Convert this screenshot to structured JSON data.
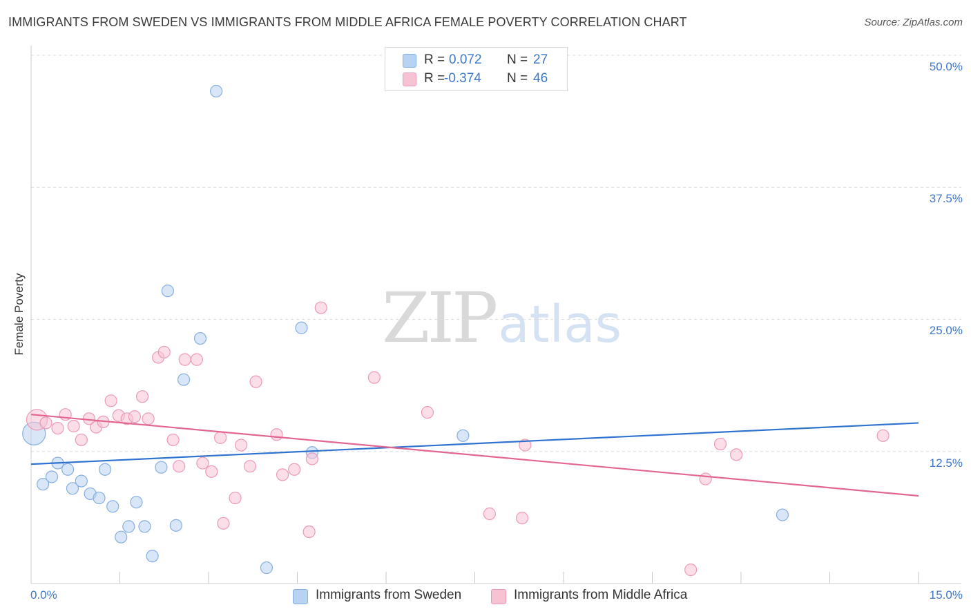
{
  "header": {
    "title": "IMMIGRANTS FROM SWEDEN VS IMMIGRANTS FROM MIDDLE AFRICA FEMALE POVERTY CORRELATION CHART",
    "source": "Source: ZipAtlas.com"
  },
  "watermark": {
    "zip": "ZIP",
    "atlas": "atlas"
  },
  "legend": {
    "r_label": "R =",
    "n_label": "N =",
    "series": [
      {
        "name": "Immigrants from Sweden",
        "r": "0.072",
        "n": "27",
        "fill": "#b8d2f2",
        "stroke": "#86aee0"
      },
      {
        "name": "Immigrants from Middle Africa",
        "r": "-0.374",
        "n": "46",
        "fill": "#f7c3d3",
        "stroke": "#ec9ab5"
      }
    ]
  },
  "colors": {
    "sweden_line": "#2f72cf",
    "africa_line": "#e3668f",
    "tick_label": "#3d78c8",
    "grid": "#dddddd"
  },
  "chart_data": {
    "type": "scatter",
    "title": "IMMIGRANTS FROM SWEDEN VS IMMIGRANTS FROM MIDDLE AFRICA FEMALE POVERTY CORRELATION CHART",
    "xlabel": "",
    "ylabel": "Female Poverty",
    "xlim": [
      0,
      15
    ],
    "ylim": [
      0,
      50
    ],
    "x_tick_labels": [
      "0.0%",
      "15.0%"
    ],
    "y_ticks": [
      12.5,
      25.0,
      37.5,
      50.0
    ],
    "y_tick_labels": [
      "12.5%",
      "25.0%",
      "37.5%",
      "50.0%"
    ],
    "grid": true,
    "series": [
      {
        "name": "Immigrants from Sweden",
        "points": [
          [
            0.05,
            14.2,
            3
          ],
          [
            0.2,
            9.4,
            1
          ],
          [
            0.35,
            10.1,
            1
          ],
          [
            0.45,
            11.4,
            1
          ],
          [
            0.62,
            10.8,
            1
          ],
          [
            0.7,
            9.0,
            1
          ],
          [
            0.85,
            9.7,
            1
          ],
          [
            1.0,
            8.5,
            1
          ],
          [
            1.15,
            8.1,
            1
          ],
          [
            1.25,
            10.8,
            1
          ],
          [
            1.38,
            7.3,
            1
          ],
          [
            1.52,
            4.4,
            1
          ],
          [
            1.65,
            5.4,
            1
          ],
          [
            1.78,
            7.7,
            1
          ],
          [
            1.92,
            5.4,
            1
          ],
          [
            2.05,
            2.6,
            1
          ],
          [
            2.2,
            11.0,
            1
          ],
          [
            2.31,
            27.7,
            1
          ],
          [
            2.45,
            5.5,
            1
          ],
          [
            2.58,
            19.3,
            1
          ],
          [
            2.86,
            23.2,
            1
          ],
          [
            3.13,
            46.6,
            1
          ],
          [
            3.98,
            1.5,
            1
          ],
          [
            4.57,
            24.2,
            1
          ],
          [
            4.75,
            12.4,
            1
          ],
          [
            7.3,
            14.0,
            1
          ],
          [
            12.7,
            6.5,
            1
          ]
        ],
        "trend": {
          "x": [
            0,
            15
          ],
          "y": [
            11.3,
            15.2
          ]
        }
      },
      {
        "name": "Immigrants from Middle Africa",
        "points": [
          [
            0.1,
            15.5,
            2
          ],
          [
            0.25,
            15.2,
            1
          ],
          [
            0.45,
            14.7,
            1
          ],
          [
            0.58,
            16.0,
            1
          ],
          [
            0.72,
            14.9,
            1
          ],
          [
            0.85,
            13.6,
            1
          ],
          [
            0.98,
            15.6,
            1
          ],
          [
            1.1,
            14.8,
            1
          ],
          [
            1.22,
            15.3,
            1
          ],
          [
            1.35,
            17.3,
            1
          ],
          [
            1.48,
            15.9,
            1
          ],
          [
            1.62,
            15.6,
            1
          ],
          [
            1.75,
            15.8,
            1
          ],
          [
            1.88,
            17.7,
            1
          ],
          [
            1.98,
            15.6,
            1
          ],
          [
            2.15,
            21.4,
            1
          ],
          [
            2.25,
            21.9,
            1
          ],
          [
            2.4,
            13.6,
            1
          ],
          [
            2.5,
            11.1,
            1
          ],
          [
            2.6,
            21.2,
            1
          ],
          [
            2.8,
            21.2,
            1
          ],
          [
            2.9,
            11.4,
            1
          ],
          [
            3.05,
            10.6,
            1
          ],
          [
            3.2,
            13.8,
            1
          ],
          [
            3.25,
            5.7,
            1
          ],
          [
            3.45,
            8.1,
            1
          ],
          [
            3.55,
            13.1,
            1
          ],
          [
            3.7,
            11.1,
            1
          ],
          [
            3.8,
            19.1,
            1
          ],
          [
            4.15,
            14.1,
            1
          ],
          [
            4.25,
            10.3,
            1
          ],
          [
            4.45,
            10.8,
            1
          ],
          [
            4.7,
            4.9,
            1
          ],
          [
            4.75,
            11.8,
            1
          ],
          [
            4.9,
            26.1,
            1
          ],
          [
            5.8,
            19.5,
            1
          ],
          [
            6.7,
            16.2,
            1
          ],
          [
            7.75,
            6.6,
            1
          ],
          [
            8.3,
            6.2,
            1
          ],
          [
            8.35,
            13.1,
            1
          ],
          [
            11.15,
            1.3,
            1
          ],
          [
            11.4,
            9.9,
            1
          ],
          [
            11.65,
            13.2,
            1
          ],
          [
            11.92,
            12.2,
            1
          ],
          [
            14.4,
            14.0,
            1
          ]
        ],
        "trend": {
          "x": [
            0,
            15
          ],
          "y": [
            16.0,
            8.3
          ]
        }
      }
    ]
  }
}
